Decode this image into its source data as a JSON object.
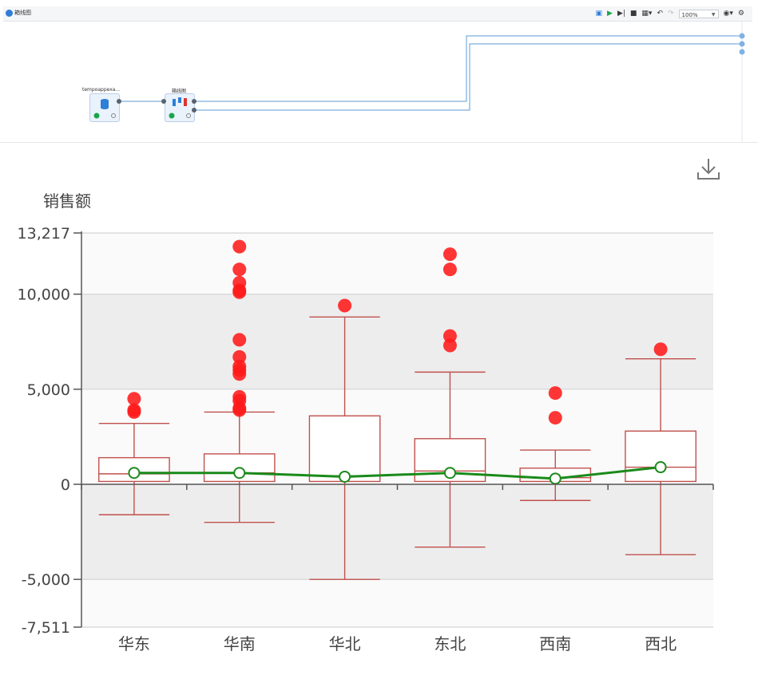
{
  "toolbar": {
    "title": "箱线图",
    "zoom": "100%",
    "icons": [
      "save-icon",
      "run-icon",
      "step-run-icon",
      "stop-icon",
      "layout-icon",
      "undo-icon",
      "redo-icon",
      "camera-icon",
      "settings-icon"
    ]
  },
  "flow": {
    "nodes": [
      {
        "label": "tempoappexa...",
        "icon": "database-icon",
        "status": "success"
      },
      {
        "label": "箱线图",
        "icon": "boxplot-icon",
        "status": "success"
      }
    ],
    "edge_color": "#5b9bd5",
    "node_bg": "#eaf2fc"
  },
  "download": {
    "icon": "download-icon"
  },
  "chart_data": {
    "type": "boxplot",
    "ylabel": "销售额",
    "ylim": [
      -7511,
      13217
    ],
    "yticks": [
      {
        "value": 13217,
        "label": "13,217"
      },
      {
        "value": 10000,
        "label": "10,000"
      },
      {
        "value": 5000,
        "label": "5,000"
      },
      {
        "value": 0,
        "label": "0"
      },
      {
        "value": -5000,
        "label": "-5,000"
      },
      {
        "value": -7511,
        "label": "-7,511"
      }
    ],
    "categories": [
      "华东",
      "华南",
      "华北",
      "东北",
      "西南",
      "西北"
    ],
    "boxes": [
      {
        "low": -1600,
        "q1": 150,
        "median": 550,
        "q3": 1400,
        "high": 3200
      },
      {
        "low": -2000,
        "q1": 150,
        "median": 600,
        "q3": 1600,
        "high": 3800
      },
      {
        "low": -5000,
        "q1": 150,
        "median": 450,
        "q3": 3600,
        "high": 8800
      },
      {
        "low": -3300,
        "q1": 150,
        "median": 700,
        "q3": 2400,
        "high": 5900
      },
      {
        "low": -850,
        "q1": 150,
        "median": 350,
        "q3": 850,
        "high": 1800
      },
      {
        "low": -3700,
        "q1": 150,
        "median": 900,
        "q3": 2800,
        "high": 6600
      }
    ],
    "outliers": [
      [
        4500,
        3900,
        3800
      ],
      [
        12500,
        11300,
        10600,
        10200,
        10100,
        7600,
        6700,
        6200,
        6000,
        5800,
        4600,
        4400,
        4000,
        3900
      ],
      [
        9400
      ],
      [
        12100,
        11300,
        7800,
        7300
      ],
      [
        4800,
        3500
      ],
      [
        7100
      ]
    ],
    "mean_line": [
      600,
      600,
      400,
      600,
      300,
      900
    ],
    "colors": {
      "box": "#c0504d",
      "outlier": "#ff1a1a",
      "mean": "#1a8a1a",
      "band": "#ededed",
      "axis": "#555555",
      "text": "#444444"
    },
    "grid": true
  }
}
